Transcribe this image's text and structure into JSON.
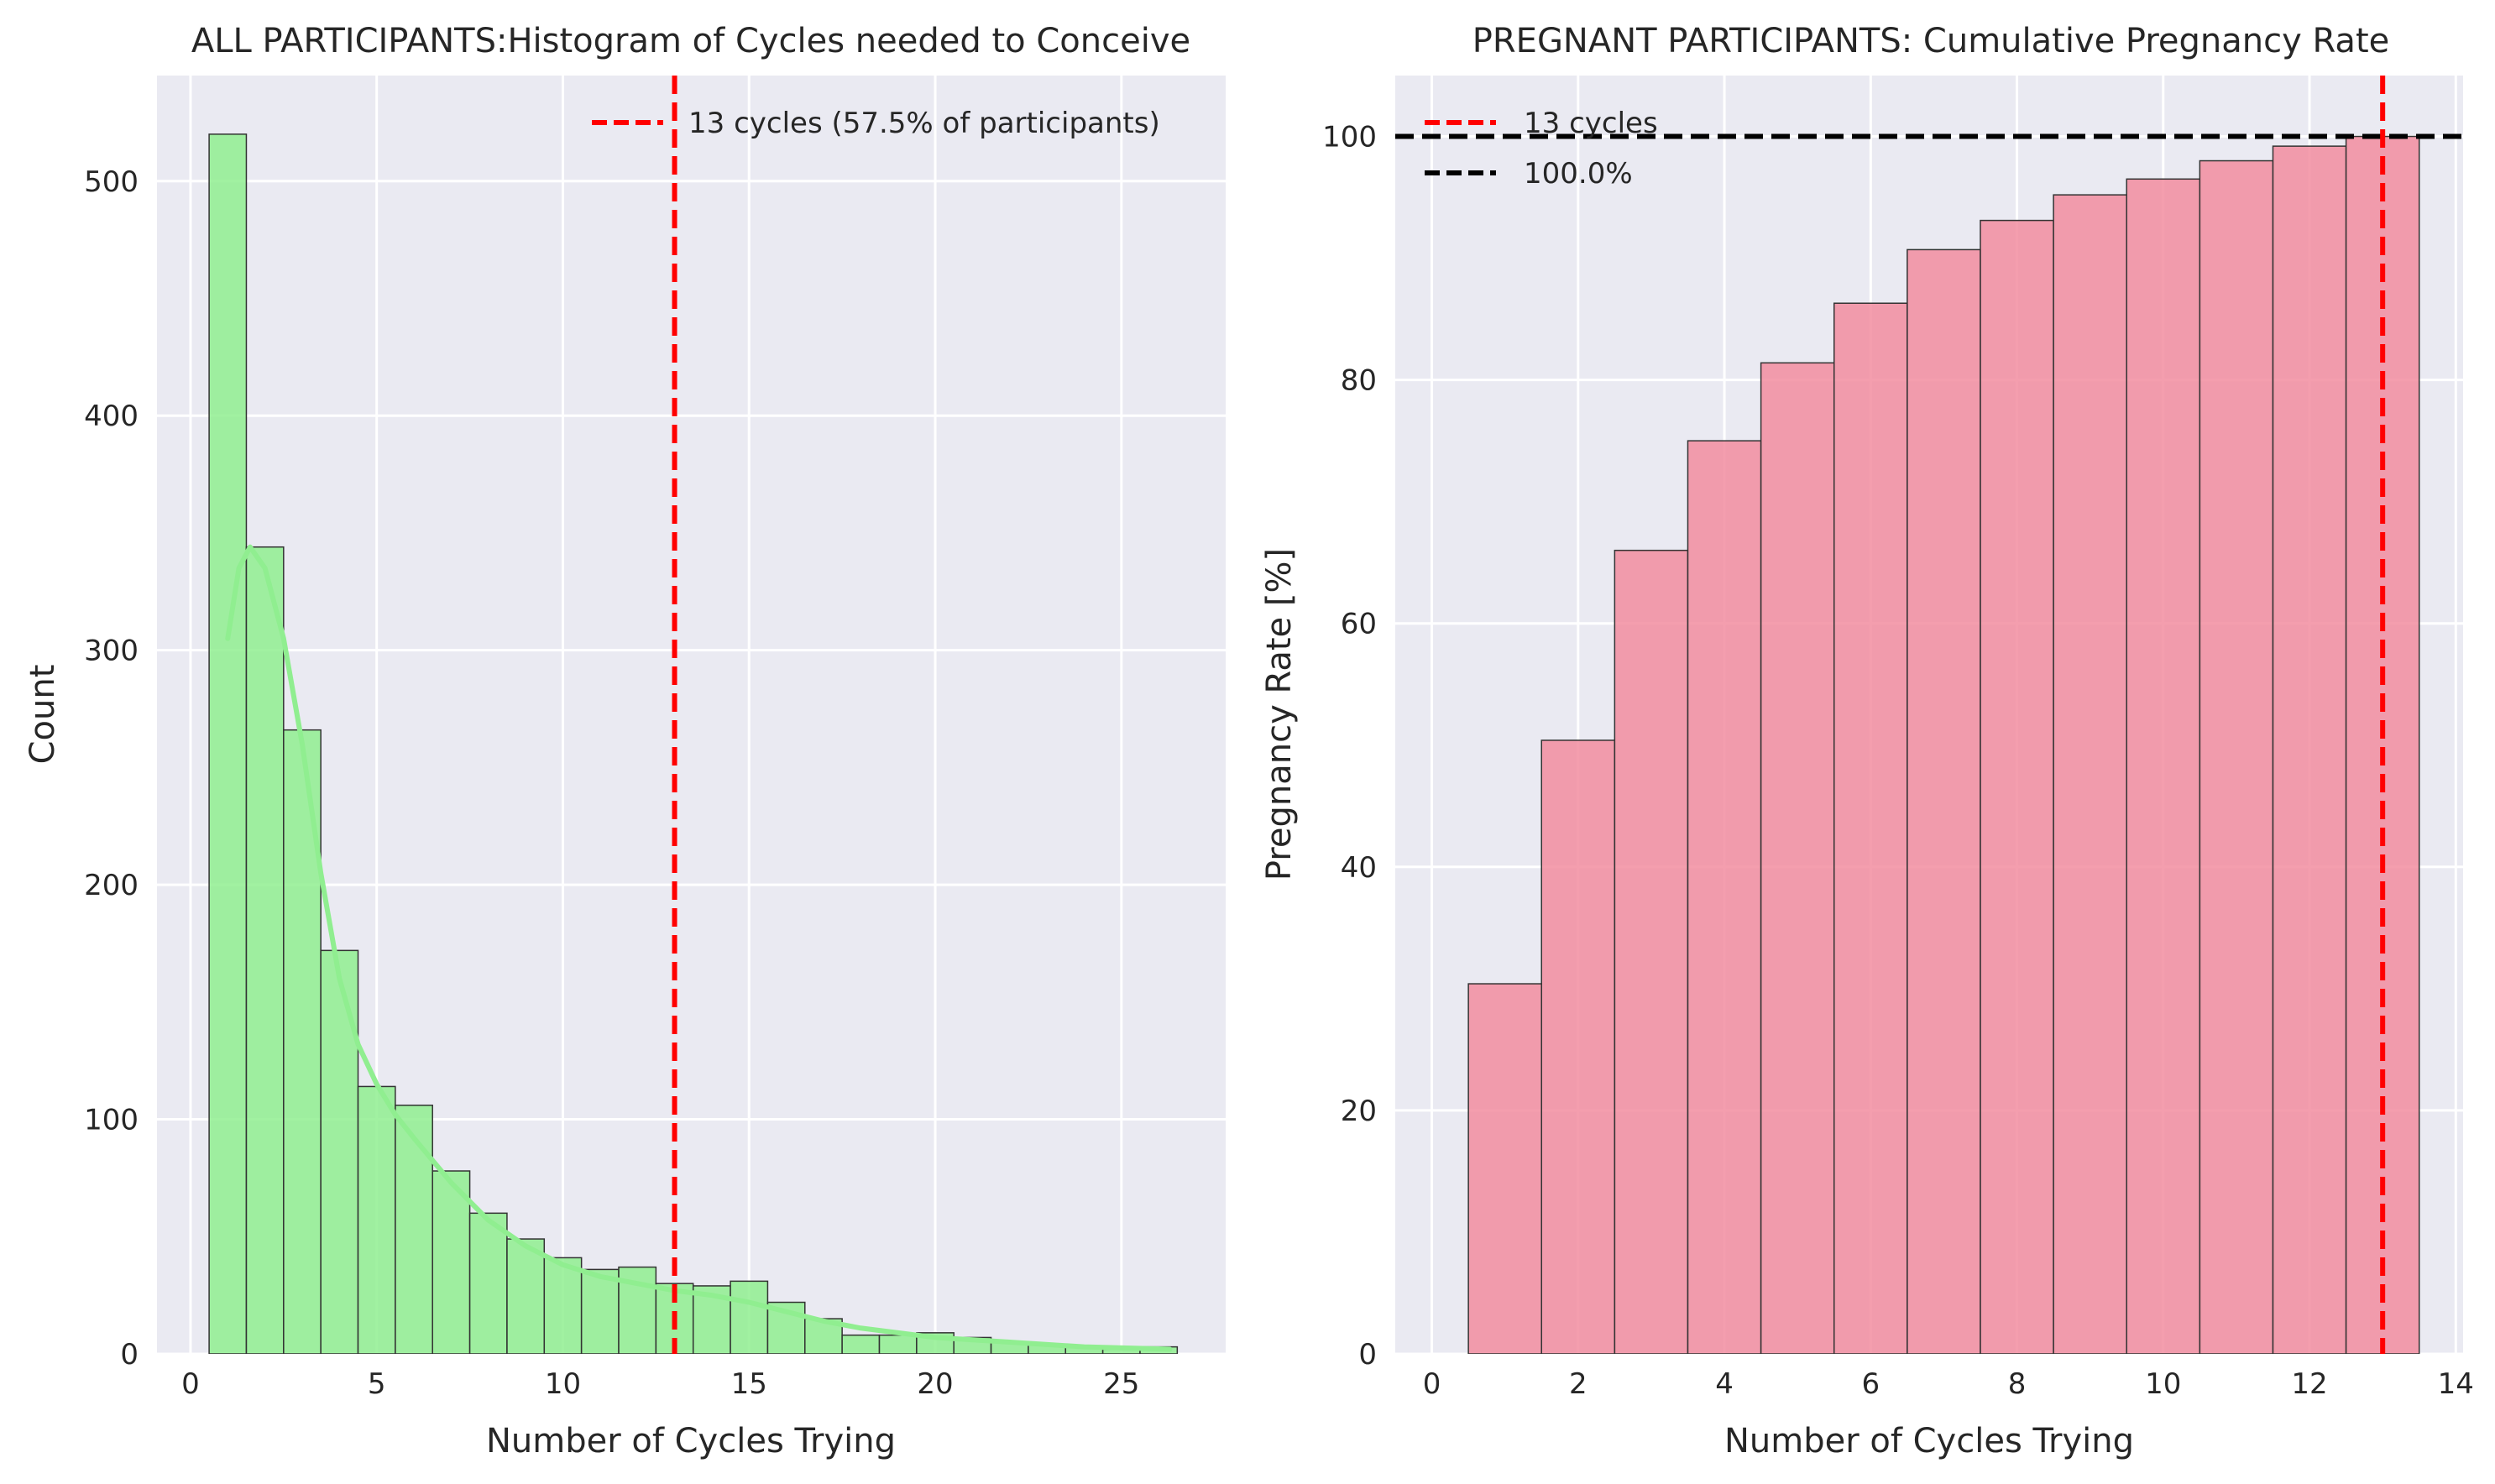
{
  "chart_data": [
    {
      "type": "bar",
      "title": "ALL PARTICIPANTS:Histogram of Cycles needed to Conceive",
      "xlabel": "Number of Cycles Trying",
      "ylabel": "Count",
      "xlim": [
        -0.9,
        27.8
      ],
      "ylim": [
        0,
        545
      ],
      "xticks": [
        0,
        5,
        10,
        15,
        20,
        25
      ],
      "xtick_labels": [
        "0",
        "5",
        "10",
        "15",
        "20",
        "25"
      ],
      "yticks": [
        0,
        100,
        200,
        300,
        400,
        500
      ],
      "ytick_labels": [
        "0",
        "100",
        "200",
        "300",
        "400",
        "500"
      ],
      "grid": true,
      "bar_color": "#90ee90",
      "bins": [
        {
          "x": 1,
          "count": 520
        },
        {
          "x": 2,
          "count": 344
        },
        {
          "x": 3,
          "count": 266
        },
        {
          "x": 4,
          "count": 172
        },
        {
          "x": 5,
          "count": 114
        },
        {
          "x": 6,
          "count": 106
        },
        {
          "x": 7,
          "count": 78
        },
        {
          "x": 8,
          "count": 60
        },
        {
          "x": 9,
          "count": 49
        },
        {
          "x": 10,
          "count": 41
        },
        {
          "x": 11,
          "count": 36
        },
        {
          "x": 12,
          "count": 37
        },
        {
          "x": 13,
          "count": 30
        },
        {
          "x": 14,
          "count": 29
        },
        {
          "x": 15,
          "count": 31
        },
        {
          "x": 16,
          "count": 22
        },
        {
          "x": 17,
          "count": 15
        },
        {
          "x": 18,
          "count": 8
        },
        {
          "x": 19,
          "count": 8
        },
        {
          "x": 20,
          "count": 9
        },
        {
          "x": 21,
          "count": 7
        },
        {
          "x": 22,
          "count": 5
        },
        {
          "x": 23,
          "count": 4
        },
        {
          "x": 24,
          "count": 3
        },
        {
          "x": 25,
          "count": 2
        },
        {
          "x": 26,
          "count": 3
        }
      ],
      "kde": {
        "x": [
          1,
          1.3,
          1.6,
          2,
          2.5,
          3,
          3.5,
          4,
          4.5,
          5,
          5.5,
          6,
          7,
          8,
          9,
          10,
          11,
          12,
          13,
          14,
          15,
          16,
          17,
          18,
          19,
          20,
          22,
          24,
          26.3
        ],
        "y": [
          305,
          335,
          344,
          335,
          305,
          260,
          205,
          160,
          132,
          115,
          102,
          92,
          73,
          57,
          46,
          38,
          33,
          30,
          27,
          25,
          22,
          18,
          14,
          11,
          9,
          7,
          5,
          3,
          2
        ]
      },
      "vline": {
        "x": 13,
        "color": "#ff0000",
        "label": "13 cycles (57.5% of participants)"
      },
      "legend_position": "upper right"
    },
    {
      "type": "bar",
      "title": "PREGNANT PARTICIPANTS: Cumulative Pregnancy Rate",
      "xlabel": "Number of Cycles Trying",
      "ylabel": "Pregnancy Rate [%]",
      "xlim": [
        -0.5,
        14.1
      ],
      "ylim": [
        0,
        105
      ],
      "xticks": [
        0,
        2,
        4,
        6,
        8,
        10,
        12,
        14
      ],
      "xtick_labels": [
        "0",
        "2",
        "4",
        "6",
        "8",
        "10",
        "12",
        "14"
      ],
      "yticks": [
        0,
        20,
        40,
        60,
        80,
        100
      ],
      "ytick_labels": [
        "0",
        "20",
        "40",
        "60",
        "80",
        "100"
      ],
      "grid": true,
      "bar_color": "#f28da0",
      "bins": [
        {
          "x": 1,
          "value": 30.4
        },
        {
          "x": 2,
          "value": 50.4
        },
        {
          "x": 3,
          "value": 66.0
        },
        {
          "x": 4,
          "value": 75.0
        },
        {
          "x": 5,
          "value": 81.4
        },
        {
          "x": 6,
          "value": 86.3
        },
        {
          "x": 7,
          "value": 90.7
        },
        {
          "x": 8,
          "value": 93.1
        },
        {
          "x": 9,
          "value": 95.2
        },
        {
          "x": 10,
          "value": 96.5
        },
        {
          "x": 11,
          "value": 98.0
        },
        {
          "x": 12,
          "value": 99.2
        },
        {
          "x": 13,
          "value": 100.0
        }
      ],
      "vline": {
        "x": 13,
        "color": "#ff0000",
        "label": "13 cycles"
      },
      "hline": {
        "y": 100,
        "color": "#000000",
        "label": "100.0%"
      },
      "legend_position": "upper left"
    }
  ]
}
